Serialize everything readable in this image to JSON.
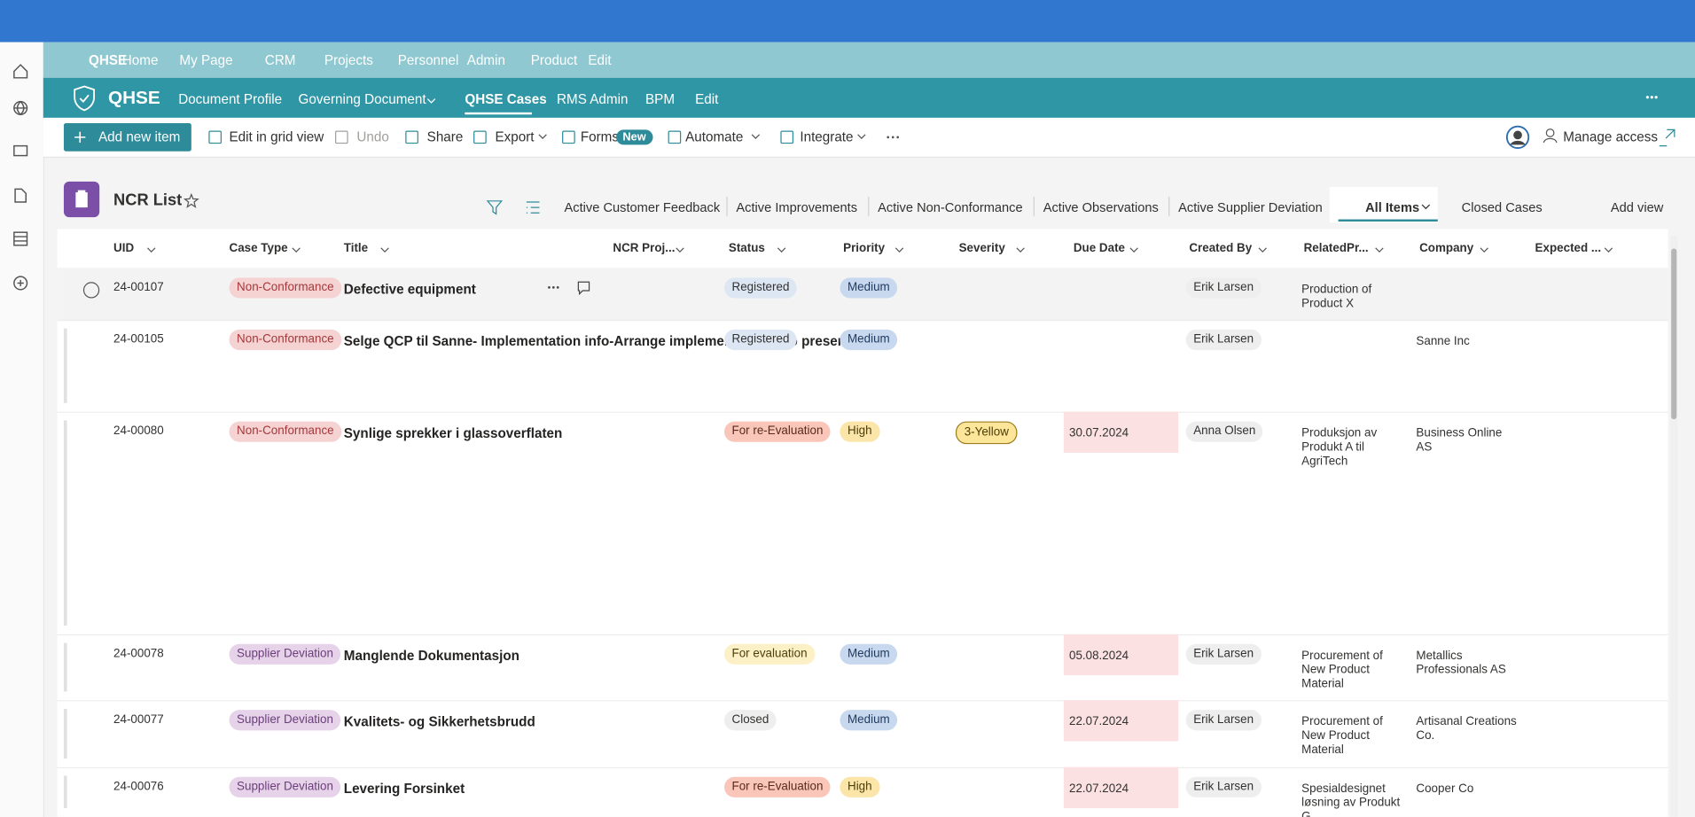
{
  "hub_nav": {
    "links": [
      "QHSE",
      "Home",
      "My Page",
      "CRM",
      "Projects",
      "Personnel",
      "Admin",
      "Product",
      "Edit"
    ]
  },
  "site_header": {
    "logo_text": "QHSE",
    "links": [
      "Document Profile",
      "Governing Document",
      "QHSE Cases",
      "RMS Admin",
      "BPM",
      "Edit"
    ]
  },
  "command_bar": {
    "add_button": "Add new item",
    "commands": [
      "Edit in grid view",
      "Undo",
      "Share",
      "Export",
      "Forms",
      "Automate",
      "Integrate"
    ],
    "forms_badge": "New",
    "manage_access": "Manage access"
  },
  "list": {
    "title": "NCR List",
    "views": [
      "Active Customer Feedback",
      "Active Improvements",
      "Active Non-Conformance",
      "Active Observations",
      "Active Supplier Deviation",
      "All Items",
      "Closed Cases"
    ],
    "add_view": "Add view",
    "columns": [
      "UID",
      "Case Type",
      "Title",
      "NCR Proj...",
      "Status",
      "Priority",
      "Severity",
      "Due Date",
      "Created By",
      "RelatedPr...",
      "Company",
      "Expected ..."
    ],
    "rows": [
      {
        "uid": "24-00107",
        "case_type": "Non-Conformance",
        "title": "Defective equipment",
        "status": "Registered",
        "priority": "Medium",
        "severity": null,
        "due_date": null,
        "created_by": "Erik Larsen",
        "related": "Production of Product X",
        "company": null
      },
      {
        "uid": "24-00105",
        "case_type": "Non-Conformance",
        "title": "Selge QCP til Sanne- Implementation info-Arrange implementation info presentation",
        "status": "Registered",
        "priority": "Medium",
        "severity": null,
        "due_date": null,
        "created_by": "Erik Larsen",
        "related": null,
        "company": "Sanne Inc"
      },
      {
        "uid": "24-00080",
        "case_type": "Non-Conformance",
        "title": "Synlige sprekker i glassoverflaten",
        "status": "For re-Evaluation",
        "priority": "High",
        "severity": "3-Yellow",
        "due_date": "30.07.2024",
        "created_by": "Anna Olsen",
        "related": "Produksjon av Produkt A til AgriTech",
        "company": "Business Online AS"
      },
      {
        "uid": "24-00078",
        "case_type": "Supplier Deviation",
        "title": "Manglende Dokumentasjon",
        "status": "For evaluation",
        "priority": "Medium",
        "severity": null,
        "due_date": "05.08.2024",
        "created_by": "Erik Larsen",
        "related": "Procurement of New Product Material",
        "company": "Metallics Professionals AS"
      },
      {
        "uid": "24-00077",
        "case_type": "Supplier Deviation",
        "title": "Kvalitets- og Sikkerhetsbrudd",
        "status": "Closed",
        "priority": "Medium",
        "severity": null,
        "due_date": "22.07.2024",
        "created_by": "Erik Larsen",
        "related": "Procurement of New Product Material",
        "company": "Artisanal Creations Co."
      },
      {
        "uid": "24-00076",
        "case_type": "Supplier Deviation",
        "title": "Levering Forsinket",
        "status": "For re-Evaluation",
        "priority": "High",
        "severity": null,
        "due_date": "22.07.2024",
        "created_by": "Erik Larsen",
        "related": "Spesialdesignet løsning av Produkt G",
        "company": "Cooper Co"
      }
    ]
  }
}
